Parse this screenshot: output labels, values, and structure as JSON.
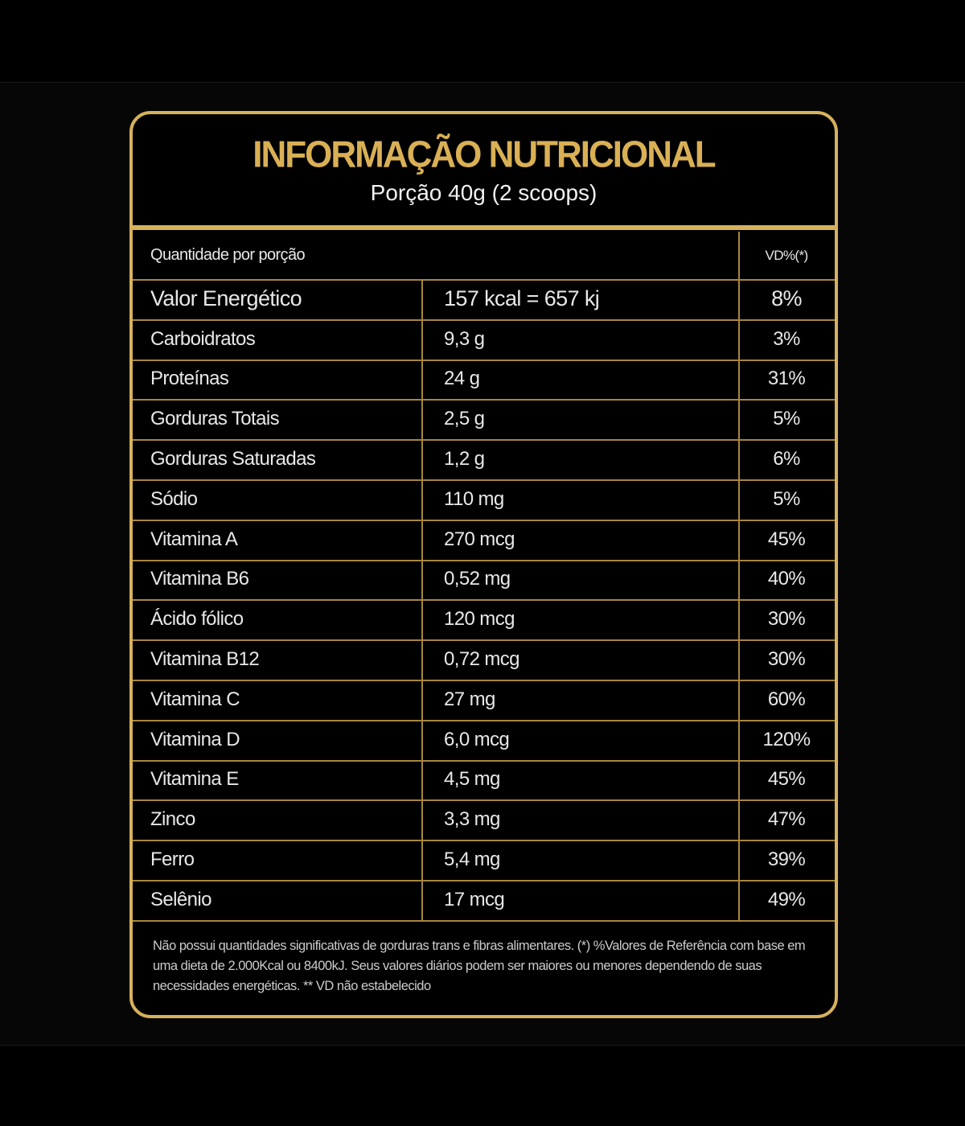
{
  "header": {
    "title": "INFORMAÇÃO NUTRICIONAL",
    "subtitle": "Porção 40g (2 scoops)"
  },
  "table": {
    "header": [
      "Quantidade por porção",
      "VD%(*)"
    ],
    "rows": [
      [
        "Valor Energético",
        "157 kcal = 657 kj",
        "8%"
      ],
      [
        "Carboidratos",
        "9,3 g",
        "3%"
      ],
      [
        "Proteínas",
        "24 g",
        "31%"
      ],
      [
        "Gorduras Totais",
        "2,5 g",
        "5%"
      ],
      [
        "Gorduras Saturadas",
        "1,2 g",
        "6%"
      ],
      [
        "Sódio",
        "110 mg",
        "5%"
      ],
      [
        "Vitamina A",
        "270 mcg",
        "45%"
      ],
      [
        "Vitamina B6",
        "0,52 mg",
        "40%"
      ],
      [
        "Ácido fólico",
        "120 mcg",
        "30%"
      ],
      [
        "Vitamina B12",
        "0,72 mcg",
        "30%"
      ],
      [
        "Vitamina C",
        "27 mg",
        "60%"
      ],
      [
        "Vitamina D",
        "6,0 mcg",
        "120%"
      ],
      [
        "Vitamina E",
        "4,5 mg",
        "45%"
      ],
      [
        "Zinco",
        "3,3 mg",
        "47%"
      ],
      [
        "Ferro",
        "5,4 mg",
        "39%"
      ],
      [
        "Selênio",
        "17 mcg",
        "49%"
      ]
    ]
  },
  "footnote": "Não possui quantidades significativas de gorduras trans e fibras alimentares. (*) %Valores de Referência com base em uma dieta de 2.000Kcal ou 8400kJ. Seus valores diários podem ser maiores ou menores dependendo de suas necessidades energéticas. ** VD não estabelecido"
}
